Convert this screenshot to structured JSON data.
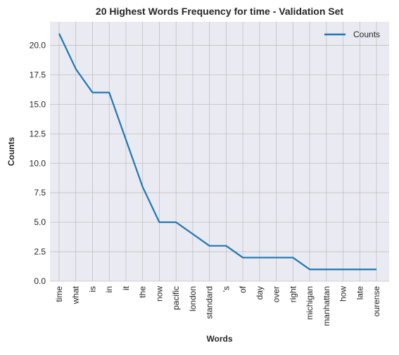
{
  "chart_data": {
    "type": "line",
    "title": "20 Highest Words Frequency for time - Validation Set",
    "xlabel": "Words",
    "ylabel": "Counts",
    "categories": [
      "time",
      "what",
      "is",
      "in",
      "it",
      "the",
      "now",
      "pacific",
      "london",
      "standard",
      "'s",
      "of",
      "day",
      "over",
      "right",
      "michigan",
      "manhattan",
      "how",
      "late",
      "ourense"
    ],
    "series": [
      {
        "name": "Counts",
        "values": [
          21,
          18,
          16,
          16,
          12,
          8,
          5,
          5,
          4,
          3,
          3,
          2,
          2,
          2,
          2,
          1,
          1,
          1,
          1,
          1
        ]
      }
    ],
    "ylim": [
      0,
      22
    ],
    "yticks": [
      "0.0",
      "2.5",
      "5.0",
      "7.5",
      "10.0",
      "12.5",
      "15.0",
      "17.5",
      "20.0"
    ],
    "grid": true,
    "legend_position": "top-right",
    "colors": {
      "line": "#1f77b4",
      "plot_background": "#eaeaf2",
      "grid": "#c0c0c0",
      "text": "#262626"
    }
  }
}
